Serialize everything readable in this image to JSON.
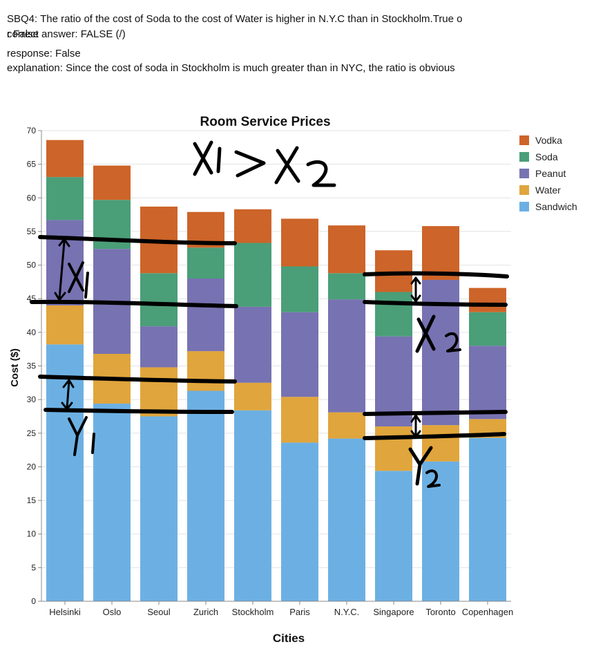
{
  "header": {
    "question": "SBQ4: The ratio of the cost of Soda to the cost of Water is higher in N.Y.C than in Stockholm.True o",
    "overflow_line": "r False",
    "correct_answer": "correct answer: FALSE (/)",
    "response": "response: False",
    "explanation": "explanation: Since the cost of soda in Stockholm is much greater than in NYC, the ratio is obvious"
  },
  "chart_data": {
    "type": "bar",
    "stacked": true,
    "title": "Room Service Prices",
    "xlabel": "Cities",
    "ylabel": "Cost ($)",
    "ylim": [
      0,
      70
    ],
    "yticks": [
      0,
      5,
      10,
      15,
      20,
      25,
      30,
      35,
      40,
      45,
      50,
      55,
      60,
      65,
      70
    ],
    "grid": true,
    "legend_position": "right",
    "categories": [
      "Helsinki",
      "Oslo",
      "Seoul",
      "Zurich",
      "Stockholm",
      "Paris",
      "N.Y.C.",
      "Singapore",
      "Toronto",
      "Copenhagen"
    ],
    "series": [
      {
        "name": "Sandwich",
        "color": "#6cb0e3",
        "values": [
          38.2,
          29.4,
          27.5,
          31.3,
          28.4,
          23.6,
          24.2,
          19.4,
          20.8,
          24.3
        ]
      },
      {
        "name": "Water",
        "color": "#e0a53c",
        "values": [
          5.8,
          7.4,
          7.3,
          5.9,
          4.1,
          6.8,
          3.9,
          6.6,
          5.4,
          2.8
        ]
      },
      {
        "name": "Peanut",
        "color": "#7772b1",
        "values": [
          12.7,
          15.6,
          6.1,
          10.8,
          11.3,
          12.6,
          16.8,
          13.4,
          21.6,
          10.9
        ]
      },
      {
        "name": "Soda",
        "color": "#4a9e78",
        "values": [
          6.4,
          7.3,
          7.9,
          4.6,
          9.5,
          6.8,
          3.9,
          6.6,
          0.0,
          5.0
        ]
      },
      {
        "name": "Vodka",
        "color": "#cd6429",
        "values": [
          5.5,
          5.1,
          9.9,
          5.3,
          5.0,
          7.1,
          7.1,
          6.2,
          8.0,
          3.6
        ]
      }
    ],
    "legend_order": [
      "Vodka",
      "Soda",
      "Peanut",
      "Water",
      "Sandwich"
    ],
    "annotation_labels": {
      "x1": "X1",
      "x2": "X2",
      "y1": "Y1",
      "y2": "Y2",
      "comparison": "X1 > X2"
    }
  }
}
